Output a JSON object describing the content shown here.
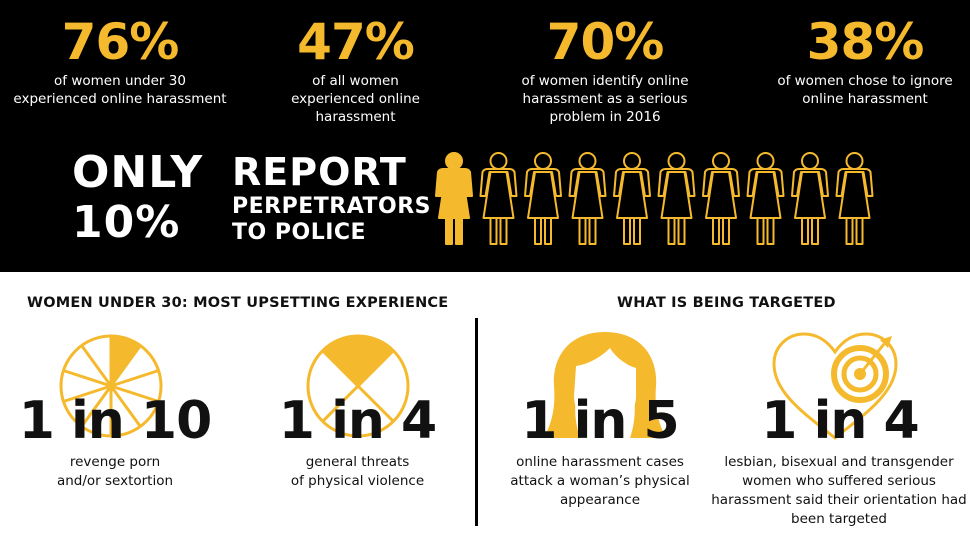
{
  "colors": {
    "accent": "#f5b92e",
    "background_top": "#000000",
    "background_bottom": "#ffffff"
  },
  "stats": [
    {
      "value": "76%",
      "desc_lines": [
        "of women under 30",
        "experienced online harassment"
      ]
    },
    {
      "value": "47%",
      "desc_lines": [
        "of all women",
        "experienced online",
        "harassment"
      ]
    },
    {
      "value": "70%",
      "desc_lines": [
        "of women identify online",
        "harassment as a serious",
        "problem in 2016"
      ]
    },
    {
      "value": "38%",
      "desc_lines": [
        "of women chose to ignore",
        "online harassment"
      ]
    }
  ],
  "report": {
    "only_lines": [
      "ONLY",
      "10%"
    ],
    "report_word": "REPORT",
    "rest_lines": [
      "PERPETRATORS",
      "TO POLICE"
    ],
    "women_total": 10,
    "women_filled": 1
  },
  "sections": {
    "left_title": "WOMEN UNDER 30: MOST UPSETTING EXPERIENCE",
    "right_title": "WHAT IS BEING TARGETED"
  },
  "facts": [
    {
      "ratio": "1 in 10",
      "caption_lines": [
        "revenge porn",
        "and/or sextortion"
      ],
      "icon": "pie-one-tenth-icon"
    },
    {
      "ratio": "1 in 4",
      "caption_lines": [
        "general threats",
        "of physical violence"
      ],
      "icon": "pie-one-quarter-icon"
    },
    {
      "ratio": "1 in 5",
      "caption_lines": [
        "online harassment cases",
        "attack a woman’s physical",
        "appearance"
      ],
      "icon": "woman-hair-icon"
    },
    {
      "ratio": "1 in 4",
      "caption_lines": [
        "lesbian, bisexual and transgender",
        "women who suffered serious",
        "harassment said their orientation had",
        "been targeted"
      ],
      "icon": "heart-target-icon"
    }
  ]
}
